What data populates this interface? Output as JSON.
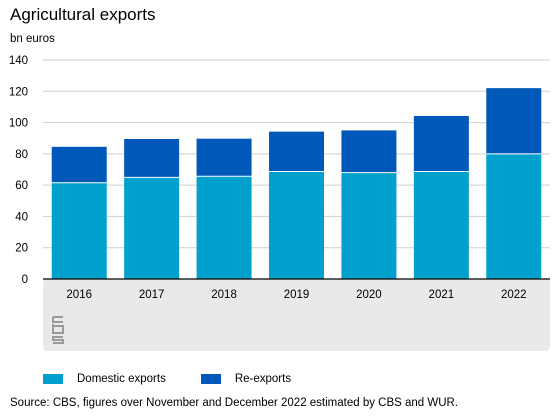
{
  "title": "Agricultural exports",
  "unit": "bn euros",
  "source": "Source: CBS, figures over November and December 2022 estimated by CBS and WUR.",
  "colors": {
    "domestic": "#00a1cd",
    "reexports": "#0058b8",
    "panel": "#e9e9e9",
    "grid": "#cfcfcf",
    "axis": "#000000"
  },
  "logo_icon": "cbs-logo-icon",
  "chart_data": {
    "type": "bar",
    "stacked": true,
    "title": "Agricultural exports",
    "ylabel": "bn euros",
    "categories": [
      "2016",
      "2017",
      "2018",
      "2019",
      "2020",
      "2021",
      "2022"
    ],
    "series": [
      {
        "name": "Domestic exports",
        "values": [
          61.5,
          65,
          65.7,
          68.7,
          68,
          68.7,
          80
        ]
      },
      {
        "name": "Re-exports",
        "values": [
          23,
          24.5,
          24,
          25.5,
          27,
          35.5,
          42
        ]
      }
    ],
    "ylim": [
      0,
      140
    ],
    "yticks": [
      0,
      20,
      40,
      60,
      80,
      100,
      120,
      140
    ],
    "grid": true,
    "legend": "bottom"
  }
}
